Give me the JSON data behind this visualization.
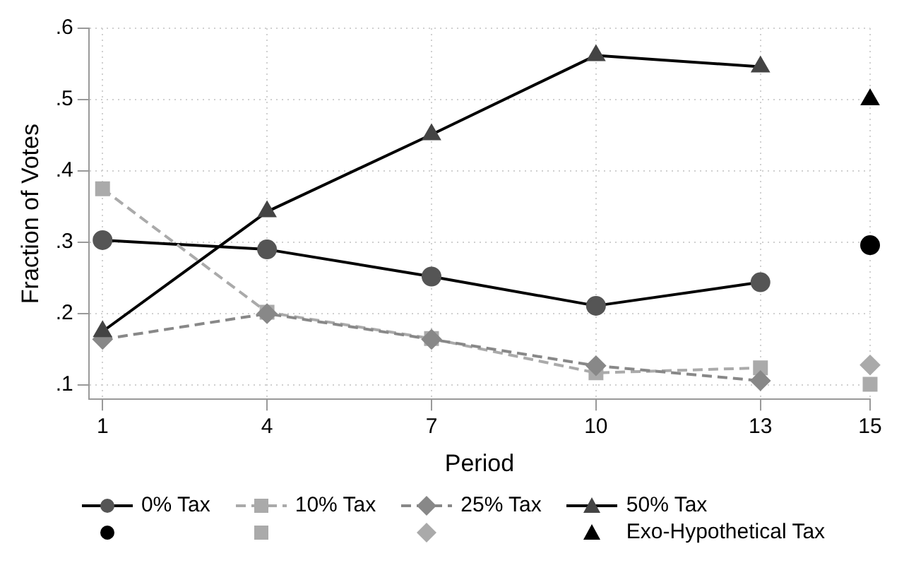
{
  "chart_data": {
    "type": "line",
    "xlabel": "Period",
    "ylabel": "Fraction of Votes",
    "xlim": [
      0.75,
      15
    ],
    "ylim": [
      0.08,
      0.6
    ],
    "xticks": [
      1,
      4,
      7,
      10,
      13,
      15
    ],
    "yticks": [
      {
        "value": 0.1,
        "label": ".1"
      },
      {
        "value": 0.2,
        "label": ".2"
      },
      {
        "value": 0.3,
        "label": ".3"
      },
      {
        "value": 0.4,
        "label": ".4"
      },
      {
        "value": 0.5,
        "label": ".5"
      },
      {
        "value": 0.6,
        "label": ".6"
      }
    ],
    "grid": true,
    "legend": "bottom",
    "series": [
      {
        "name": "0% Tax",
        "marker": "circle",
        "line_style": "solid",
        "color": "#555555",
        "x": [
          1,
          4,
          7,
          10,
          13
        ],
        "values": [
          0.303,
          0.29,
          0.252,
          0.211,
          0.244
        ]
      },
      {
        "name": "10% Tax",
        "marker": "square",
        "line_style": "dashed",
        "color": "#aaaaaa",
        "x": [
          1,
          4,
          7,
          10,
          13
        ],
        "values": [
          0.375,
          0.202,
          0.165,
          0.117,
          0.124
        ]
      },
      {
        "name": "25% Tax",
        "marker": "diamond",
        "line_style": "dashed",
        "color": "#888888",
        "x": [
          1,
          4,
          7,
          10,
          13
        ],
        "values": [
          0.164,
          0.2,
          0.164,
          0.127,
          0.106
        ]
      },
      {
        "name": "50% Tax",
        "marker": "triangle",
        "line_style": "solid",
        "color": "#444444",
        "x": [
          1,
          4,
          7,
          10,
          13
        ],
        "values": [
          0.175,
          0.343,
          0.451,
          0.562,
          0.546
        ]
      },
      {
        "type": "scatter",
        "marker": "circle",
        "color": "#000000",
        "x": [
          15
        ],
        "values": [
          0.296
        ]
      },
      {
        "type": "scatter",
        "marker": "square",
        "color": "#aaaaaa",
        "x": [
          15
        ],
        "values": [
          0.101
        ]
      },
      {
        "type": "scatter",
        "marker": "diamond",
        "color": "#aaaaaa",
        "x": [
          15
        ],
        "values": [
          0.128
        ]
      },
      {
        "name": "Exo-Hypothetical Tax",
        "type": "scatter",
        "marker": "triangle",
        "color": "#000000",
        "x": [
          15
        ],
        "values": [
          0.5
        ]
      }
    ]
  }
}
